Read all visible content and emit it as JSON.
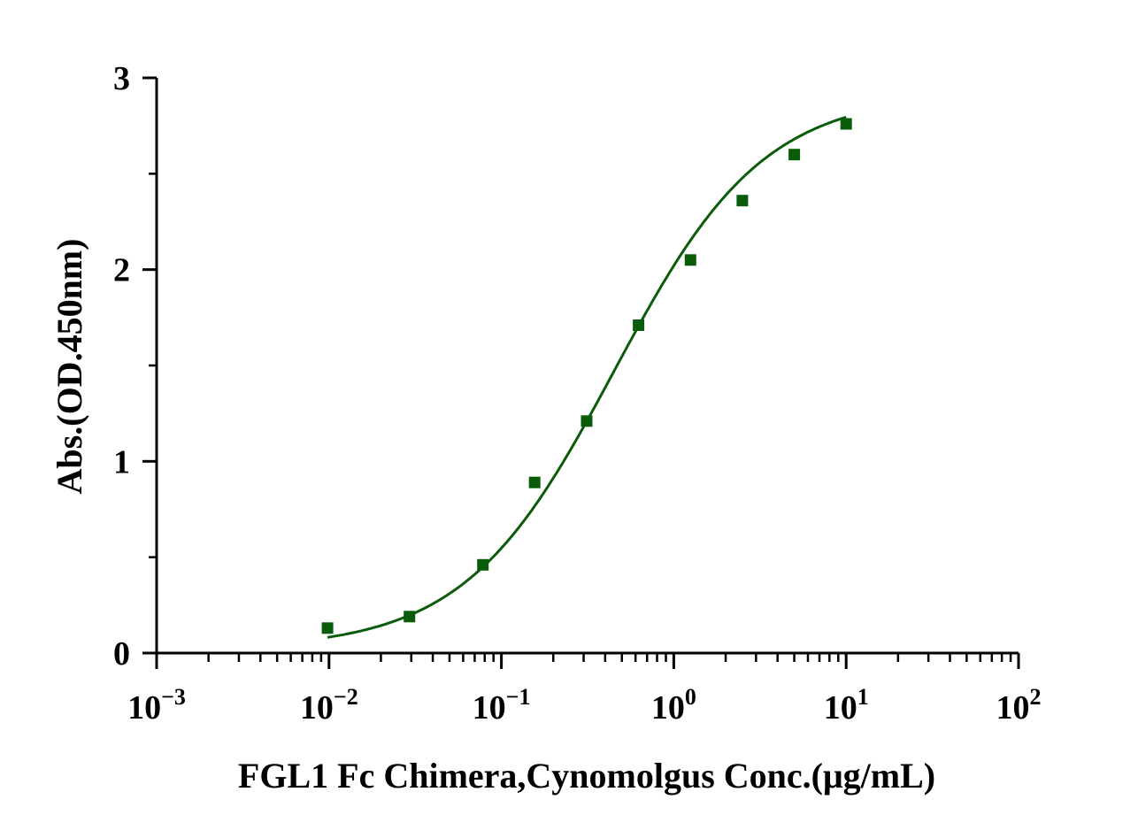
{
  "chart_data": {
    "type": "scatter",
    "title": "",
    "xlabel": "FGL1 Fc Chimera,Cynomolgus Conc.(μg/mL)",
    "ylabel": "Abs.(OD.450nm)",
    "x_scale": "log",
    "xlim": [
      0.001,
      100
    ],
    "ylim": [
      0,
      3
    ],
    "x_ticks": [
      {
        "base": "10",
        "exp": "-3"
      },
      {
        "base": "10",
        "exp": "-2"
      },
      {
        "base": "10",
        "exp": "-1"
      },
      {
        "base": "10",
        "exp": "0"
      },
      {
        "base": "10",
        "exp": "1"
      },
      {
        "base": "10",
        "exp": "2"
      }
    ],
    "y_ticks": [
      "0",
      "1",
      "2",
      "3"
    ],
    "grid": false,
    "legend": "none",
    "color": "#0a5c0a",
    "series": [
      {
        "x": [
          0.0098,
          0.0293,
          0.0781,
          0.156,
          0.3125,
          0.625,
          1.25,
          2.5,
          5,
          10
        ],
        "y": [
          0.13,
          0.19,
          0.46,
          0.89,
          1.21,
          1.71,
          2.05,
          2.36,
          2.6,
          2.76
        ],
        "fit": "4PL"
      }
    ]
  }
}
